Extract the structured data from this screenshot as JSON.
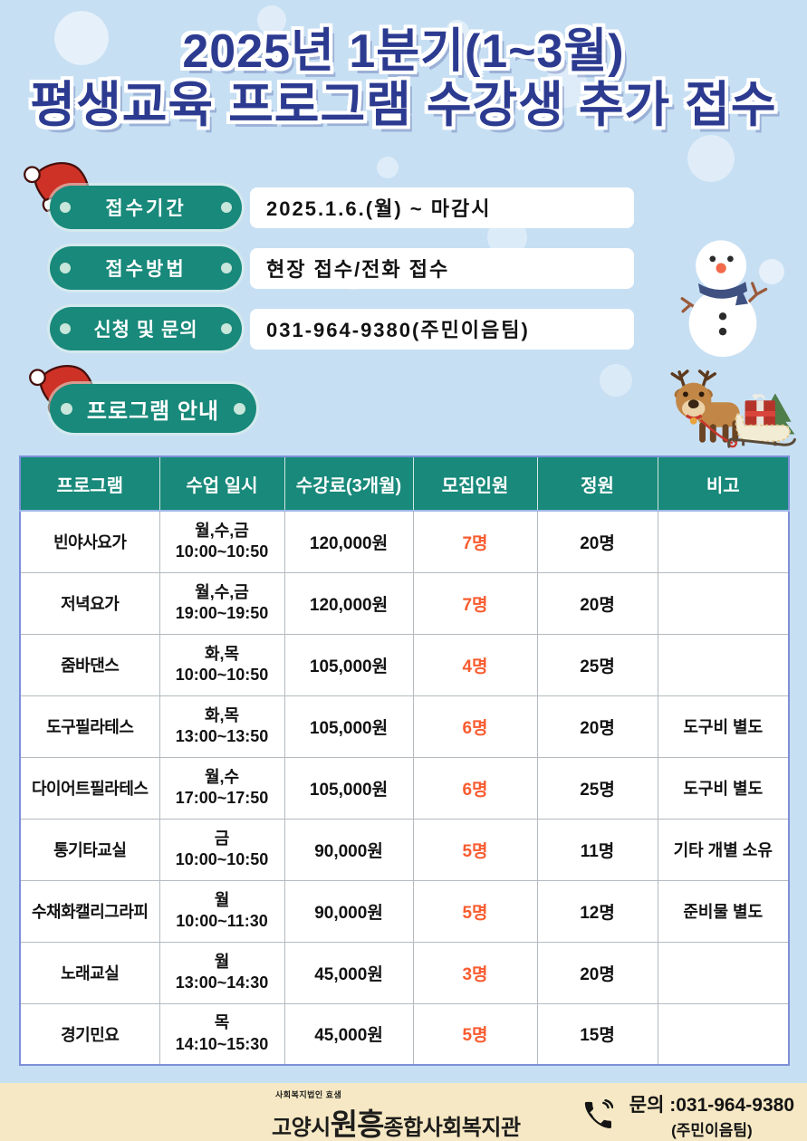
{
  "title": {
    "line1": "2025년 1분기(1~3월)",
    "line2": "평생교육 프로그램 수강생 추가 접수"
  },
  "info": {
    "rows": [
      {
        "label": "접수기간",
        "value": "2025.1.6.(월) ~ 마감시"
      },
      {
        "label": "접수방법",
        "value": "현장 접수/전화 접수"
      },
      {
        "label": "신청 및 문의",
        "value": "031-964-9380(주민이음팀)"
      }
    ]
  },
  "section_label": "프로그램 안내",
  "table": {
    "headers": [
      "프로그램",
      "수업 일시",
      "수강료(3개월)",
      "모집인원",
      "정원",
      "비고"
    ],
    "rows": [
      {
        "program": "빈야사요가",
        "days": "월,수,금",
        "time": "10:00~10:50",
        "fee": "120,000원",
        "recruit": "7명",
        "capacity": "20명",
        "note": ""
      },
      {
        "program": "저녁요가",
        "days": "월,수,금",
        "time": "19:00~19:50",
        "fee": "120,000원",
        "recruit": "7명",
        "capacity": "20명",
        "note": ""
      },
      {
        "program": "줌바댄스",
        "days": "화,목",
        "time": "10:00~10:50",
        "fee": "105,000원",
        "recruit": "4명",
        "capacity": "25명",
        "note": ""
      },
      {
        "program": "도구필라테스",
        "days": "화,목",
        "time": "13:00~13:50",
        "fee": "105,000원",
        "recruit": "6명",
        "capacity": "20명",
        "note": "도구비 별도"
      },
      {
        "program": "다이어트필라테스",
        "days": "월,수",
        "time": "17:00~17:50",
        "fee": "105,000원",
        "recruit": "6명",
        "capacity": "25명",
        "note": "도구비 별도"
      },
      {
        "program": "통기타교실",
        "days": "금",
        "time": "10:00~10:50",
        "fee": "90,000원",
        "recruit": "5명",
        "capacity": "11명",
        "note": "기타 개별 소유"
      },
      {
        "program": "수채화캘리그라피",
        "days": "월",
        "time": "10:00~11:30",
        "fee": "90,000원",
        "recruit": "5명",
        "capacity": "12명",
        "note": "준비물 별도"
      },
      {
        "program": "노래교실",
        "days": "월",
        "time": "13:00~14:30",
        "fee": "45,000원",
        "recruit": "3명",
        "capacity": "20명",
        "note": ""
      },
      {
        "program": "경기민요",
        "days": "목",
        "time": "14:10~15:30",
        "fee": "45,000원",
        "recruit": "5명",
        "capacity": "15명",
        "note": ""
      }
    ]
  },
  "footer": {
    "logo_top": "사회복지법인 효샘",
    "logo_pre": "고양시",
    "logo_mid": "원흥",
    "logo_post": "종합사회복지관",
    "contact_line1": "문의 :031-964-9380",
    "contact_line2": "(주민이음팀)"
  },
  "icons": {
    "santa_hat": "santa-hat-icon",
    "snowman": "snowman-icon",
    "reindeer_sleigh": "reindeer-sleigh-icon",
    "phone": "phone-icon"
  },
  "colors": {
    "background_blue": "#c7dff3",
    "title_navy": "#2c3b90",
    "accent_teal": "#18897a",
    "recruit_orange": "#f85c30",
    "table_border_blue": "#7c90d8",
    "footer_cream": "#f6e8c4"
  }
}
